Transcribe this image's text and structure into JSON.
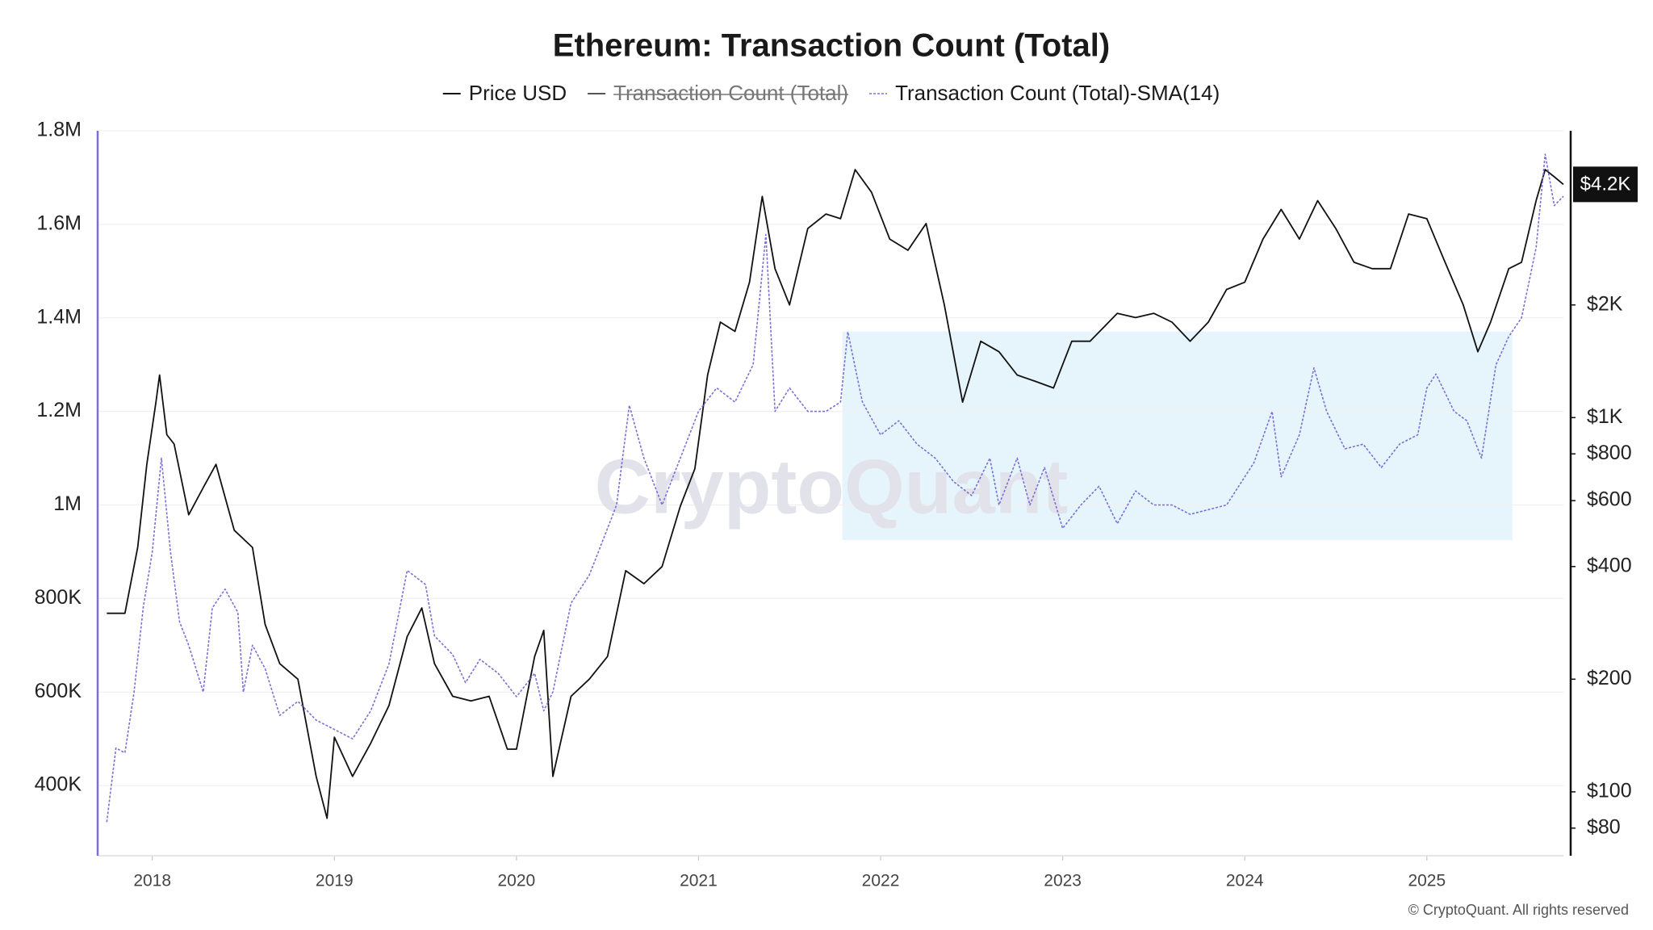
{
  "chart_data": {
    "type": "line",
    "title": "Ethereum: Transaction Count (Total)",
    "watermark": "CryptoQuant",
    "credit": "© CryptoQuant. All rights reserved",
    "xlim": [
      2017.7,
      2025.75
    ],
    "xticks": [
      2018,
      2019,
      2020,
      2021,
      2022,
      2023,
      2024,
      2025
    ],
    "ylim": [
      250000,
      1800000
    ],
    "yticks": [
      {
        "value": 400000,
        "label": "400K"
      },
      {
        "value": 600000,
        "label": "600K"
      },
      {
        "value": 800000,
        "label": "800K"
      },
      {
        "value": 1000000,
        "label": "1M"
      },
      {
        "value": 1200000,
        "label": "1.2M"
      },
      {
        "value": 1400000,
        "label": "1.4M"
      },
      {
        "value": 1600000,
        "label": "1.6M"
      },
      {
        "value": 1800000,
        "label": "1.8M"
      }
    ],
    "y2lim": [
      67.5,
      5840
    ],
    "y2_log": true,
    "y2ticks": [
      {
        "value": 80,
        "label": "$80"
      },
      {
        "value": 100,
        "label": "$100"
      },
      {
        "value": 200,
        "label": "$200"
      },
      {
        "value": 400,
        "label": "$400"
      },
      {
        "value": 600,
        "label": "$600"
      },
      {
        "value": 800,
        "label": "$800"
      },
      {
        "value": 1000,
        "label": "$1K"
      },
      {
        "value": 2000,
        "label": "$2K"
      }
    ],
    "y2_current": {
      "value": 4200,
      "label": "$4.2K"
    },
    "grid": true,
    "highlight": {
      "xlim": [
        2021.79,
        2025.47
      ],
      "ylim": [
        925000,
        1371000
      ],
      "color": "#e6f5fb"
    },
    "series": [
      {
        "name": "Price USD",
        "color": "#111111",
        "axis": "y2",
        "x": [
          2017.75,
          2017.85,
          2017.92,
          2017.97,
          2018.02,
          2018.04,
          2018.08,
          2018.12,
          2018.2,
          2018.28,
          2018.35,
          2018.45,
          2018.55,
          2018.62,
          2018.7,
          2018.8,
          2018.9,
          2018.96,
          2019.0,
          2019.1,
          2019.2,
          2019.3,
          2019.4,
          2019.48,
          2019.55,
          2019.65,
          2019.75,
          2019.85,
          2019.95,
          2020.0,
          2020.1,
          2020.15,
          2020.2,
          2020.3,
          2020.4,
          2020.5,
          2020.6,
          2020.7,
          2020.8,
          2020.9,
          2020.98,
          2021.05,
          2021.12,
          2021.2,
          2021.28,
          2021.35,
          2021.42,
          2021.5,
          2021.6,
          2021.7,
          2021.78,
          2021.86,
          2021.95,
          2022.05,
          2022.15,
          2022.25,
          2022.35,
          2022.45,
          2022.55,
          2022.65,
          2022.75,
          2022.85,
          2022.95,
          2023.05,
          2023.15,
          2023.3,
          2023.4,
          2023.5,
          2023.6,
          2023.7,
          2023.8,
          2023.9,
          2024.0,
          2024.1,
          2024.2,
          2024.3,
          2024.4,
          2024.5,
          2024.6,
          2024.7,
          2024.8,
          2024.9,
          2025.0,
          2025.1,
          2025.2,
          2025.28,
          2025.35,
          2025.45,
          2025.52,
          2025.6,
          2025.65,
          2025.7,
          2025.75
        ],
        "values": [
          300,
          300,
          450,
          750,
          1100,
          1300,
          900,
          850,
          550,
          650,
          750,
          500,
          450,
          280,
          220,
          200,
          110,
          85,
          140,
          110,
          135,
          170,
          260,
          310,
          220,
          180,
          175,
          180,
          130,
          130,
          230,
          270,
          110,
          180,
          200,
          230,
          390,
          360,
          400,
          580,
          730,
          1300,
          1800,
          1700,
          2300,
          3900,
          2500,
          2000,
          3200,
          3500,
          3400,
          4600,
          4000,
          3000,
          2800,
          3300,
          2000,
          1100,
          1600,
          1500,
          1300,
          1250,
          1200,
          1600,
          1600,
          1900,
          1850,
          1900,
          1800,
          1600,
          1800,
          2200,
          2300,
          3000,
          3600,
          3000,
          3800,
          3200,
          2600,
          2500,
          2500,
          3500,
          3400,
          2600,
          2000,
          1500,
          1800,
          2500,
          2600,
          3800,
          4600,
          4400,
          4200
        ]
      },
      {
        "name": "Transaction Count (Total)",
        "color": "#555555",
        "visible": false
      },
      {
        "name": "Transaction Count (Total)-SMA(14)",
        "color": "#7b6fd6",
        "dashed": true,
        "x": [
          2017.75,
          2017.8,
          2017.85,
          2017.9,
          2017.95,
          2018.0,
          2018.05,
          2018.1,
          2018.15,
          2018.2,
          2018.28,
          2018.33,
          2018.4,
          2018.47,
          2018.5,
          2018.55,
          2018.62,
          2018.7,
          2018.8,
          2018.9,
          2019.0,
          2019.1,
          2019.2,
          2019.3,
          2019.4,
          2019.5,
          2019.55,
          2019.65,
          2019.72,
          2019.8,
          2019.9,
          2020.0,
          2020.1,
          2020.15,
          2020.2,
          2020.3,
          2020.4,
          2020.5,
          2020.55,
          2020.62,
          2020.7,
          2020.8,
          2020.9,
          2021.0,
          2021.1,
          2021.2,
          2021.3,
          2021.37,
          2021.42,
          2021.5,
          2021.6,
          2021.7,
          2021.78,
          2021.82,
          2021.9,
          2022.0,
          2022.1,
          2022.2,
          2022.3,
          2022.4,
          2022.5,
          2022.6,
          2022.65,
          2022.75,
          2022.82,
          2022.9,
          2023.0,
          2023.1,
          2023.2,
          2023.3,
          2023.4,
          2023.5,
          2023.6,
          2023.7,
          2023.8,
          2023.9,
          2024.0,
          2024.05,
          2024.15,
          2024.2,
          2024.3,
          2024.38,
          2024.45,
          2024.55,
          2024.65,
          2024.75,
          2024.85,
          2024.95,
          2025.0,
          2025.05,
          2025.15,
          2025.22,
          2025.3,
          2025.38,
          2025.45,
          2025.52,
          2025.6,
          2025.65,
          2025.7,
          2025.75
        ],
        "values": [
          322000,
          480000,
          470000,
          600000,
          780000,
          900000,
          1100000,
          900000,
          750000,
          700000,
          600000,
          780000,
          820000,
          770000,
          600000,
          700000,
          650000,
          550000,
          580000,
          540000,
          520000,
          500000,
          560000,
          660000,
          860000,
          830000,
          720000,
          680000,
          620000,
          670000,
          640000,
          590000,
          640000,
          560000,
          600000,
          790000,
          850000,
          950000,
          1000000,
          1213000,
          1100000,
          1000000,
          1100000,
          1200000,
          1250000,
          1220000,
          1300000,
          1578000,
          1200000,
          1250000,
          1200000,
          1200000,
          1220000,
          1370000,
          1220000,
          1150000,
          1180000,
          1130000,
          1100000,
          1050000,
          1020000,
          1100000,
          1000000,
          1100000,
          1000000,
          1080000,
          950000,
          1000000,
          1040000,
          960000,
          1030000,
          1000000,
          1000000,
          980000,
          990000,
          1000000,
          1060000,
          1090000,
          1200000,
          1060000,
          1150000,
          1293000,
          1200000,
          1120000,
          1130000,
          1080000,
          1130000,
          1150000,
          1250000,
          1280000,
          1200000,
          1180000,
          1100000,
          1300000,
          1360000,
          1400000,
          1550000,
          1750000,
          1640000,
          1660000
        ]
      }
    ]
  }
}
